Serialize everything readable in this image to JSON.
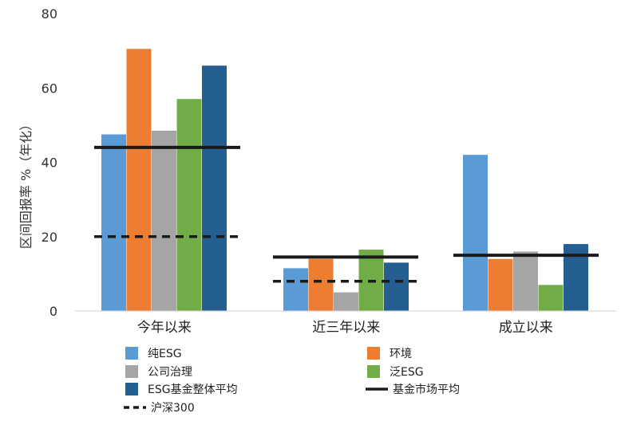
{
  "chart_data": {
    "type": "bar",
    "ylabel": "区间回报率 %（年化）",
    "ylim": [
      0,
      80
    ],
    "yticks": [
      "0",
      "20",
      "40",
      "60",
      "80"
    ],
    "grid": false,
    "legend_position": "bottom",
    "categories": [
      "今年以来",
      "近三年以来",
      "成立以来"
    ],
    "series": [
      {
        "name": "纯ESG",
        "color": "#5B9BD5",
        "values": [
          47.5,
          11.5,
          42.0
        ]
      },
      {
        "name": "环境",
        "color": "#ED7D31",
        "values": [
          70.5,
          14.0,
          14.0
        ]
      },
      {
        "name": "公司治理",
        "color": "#A5A5A5",
        "values": [
          48.5,
          5.0,
          16.0
        ]
      },
      {
        "name": "泛ESG",
        "color": "#70AD47",
        "values": [
          57.0,
          16.5,
          7.0
        ]
      },
      {
        "name": "ESG基金整体平均",
        "color": "#255E91",
        "values": [
          66.0,
          13.0,
          18.0
        ]
      }
    ],
    "lines": [
      {
        "name": "基金市场平均",
        "style": "solid",
        "color": "#1a1a1a",
        "values": [
          44.0,
          14.5,
          15.0
        ]
      },
      {
        "name": "沪深300",
        "style": "dashed",
        "color": "#1a1a1a",
        "values": [
          20.0,
          8.0,
          null
        ]
      }
    ]
  }
}
